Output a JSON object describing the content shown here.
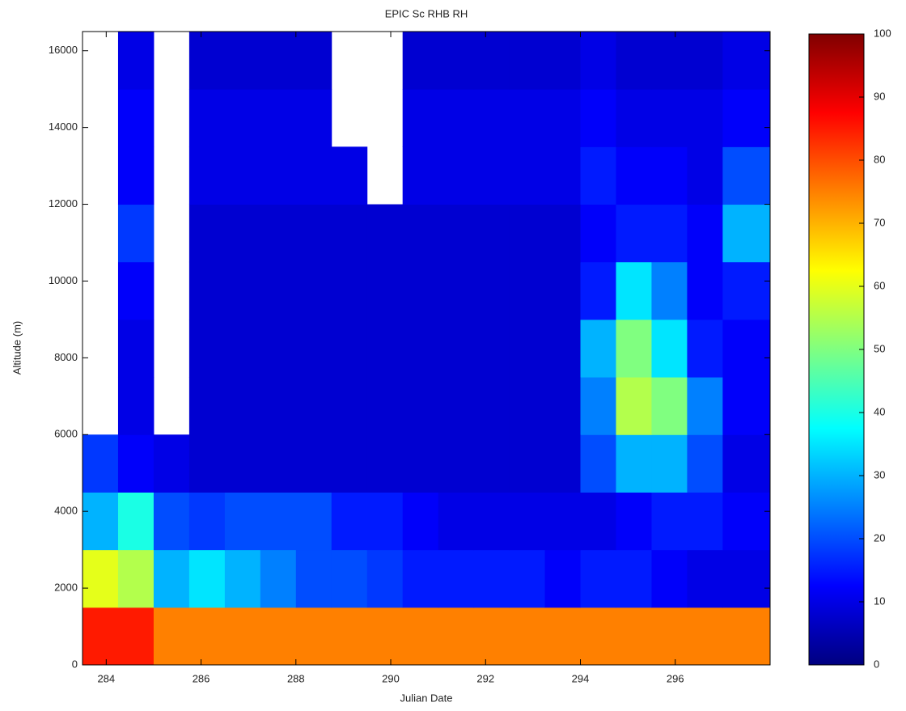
{
  "chart_data": {
    "type": "heatmap",
    "title": "EPIC Sc RHB RH",
    "xlabel": "Julian Date",
    "ylabel": "Altitude (m)",
    "xbins": [
      283.5,
      284.25,
      285,
      285.75,
      286.5,
      287.25,
      288,
      288.75,
      289.5,
      290.25,
      291,
      291.75,
      292.5,
      293.25,
      294,
      294.75,
      295.5,
      296.25,
      297,
      298
    ],
    "ybins": [
      0,
      1500,
      3000,
      4500,
      6000,
      7500,
      9000,
      10500,
      12000,
      13500,
      15000,
      16500
    ],
    "z": [
      [
        85,
        85,
        75,
        75,
        75,
        75,
        75,
        75,
        75,
        75,
        75,
        75,
        75,
        75,
        75,
        75,
        75,
        75,
        75
      ],
      [
        60,
        55,
        30,
        35,
        30,
        25,
        20,
        20,
        18,
        15,
        15,
        15,
        15,
        12,
        15,
        15,
        12,
        10,
        10
      ],
      [
        30,
        40,
        20,
        18,
        20,
        20,
        20,
        15,
        15,
        12,
        10,
        10,
        10,
        10,
        10,
        12,
        15,
        15,
        12
      ],
      [
        18,
        12,
        10,
        8,
        8,
        8,
        8,
        8,
        8,
        8,
        8,
        8,
        8,
        8,
        20,
        30,
        30,
        20,
        10
      ],
      [
        null,
        10,
        null,
        8,
        8,
        8,
        8,
        8,
        8,
        8,
        8,
        8,
        8,
        8,
        25,
        55,
        50,
        25,
        12
      ],
      [
        null,
        10,
        null,
        8,
        8,
        8,
        8,
        8,
        8,
        8,
        8,
        8,
        8,
        8,
        30,
        50,
        35,
        15,
        12
      ],
      [
        null,
        12,
        null,
        8,
        8,
        8,
        8,
        8,
        8,
        8,
        8,
        8,
        8,
        8,
        15,
        35,
        25,
        12,
        15
      ],
      [
        null,
        18,
        null,
        8,
        8,
        8,
        8,
        8,
        8,
        8,
        8,
        8,
        8,
        8,
        12,
        15,
        15,
        12,
        30
      ],
      [
        null,
        12,
        null,
        10,
        10,
        10,
        10,
        10,
        null,
        10,
        10,
        10,
        10,
        10,
        15,
        12,
        12,
        10,
        20
      ],
      [
        null,
        12,
        null,
        10,
        10,
        10,
        10,
        null,
        null,
        10,
        10,
        10,
        10,
        10,
        12,
        10,
        10,
        10,
        12
      ],
      [
        null,
        10,
        null,
        8,
        8,
        8,
        8,
        null,
        null,
        8,
        8,
        8,
        8,
        8,
        10,
        8,
        8,
        8,
        10
      ]
    ],
    "xlim": [
      283.5,
      298
    ],
    "ylim": [
      0,
      16500
    ],
    "xticks": [
      284,
      286,
      288,
      290,
      292,
      294,
      296
    ],
    "yticks": [
      0,
      2000,
      4000,
      6000,
      8000,
      10000,
      12000,
      14000,
      16000
    ],
    "zlim": [
      0,
      100
    ],
    "zticks": [
      0,
      10,
      20,
      30,
      40,
      50,
      60,
      70,
      80,
      90,
      100
    ],
    "colormap": "jet"
  }
}
